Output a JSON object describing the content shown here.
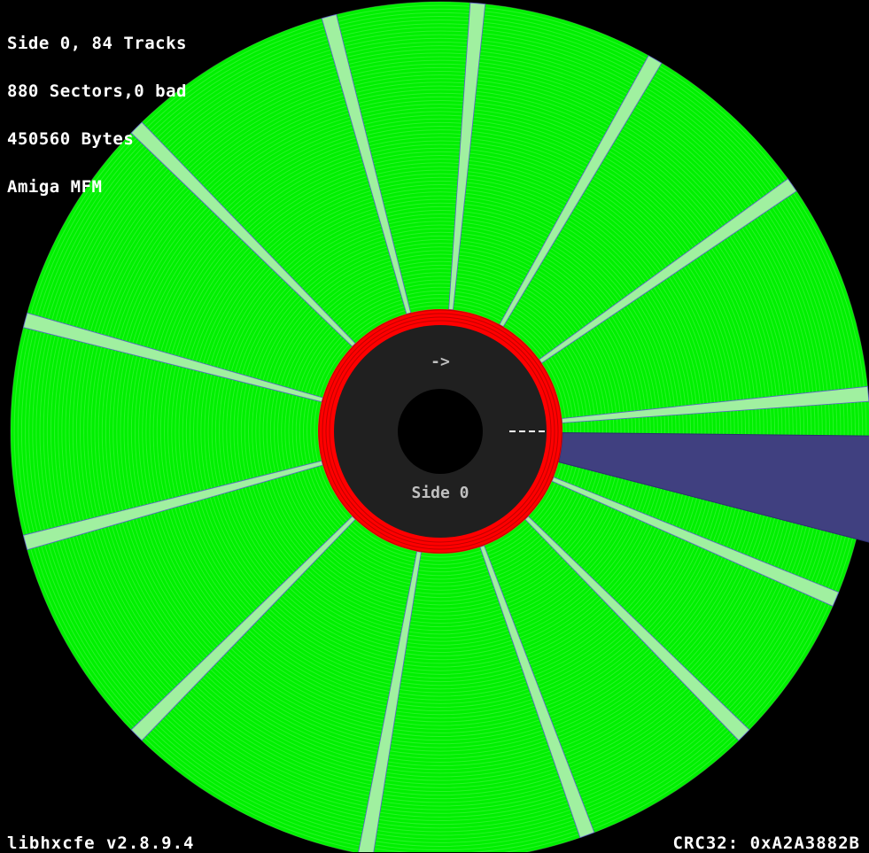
{
  "info": {
    "line1": "Side 0, 84 Tracks",
    "line2": "880 Sectors,0 bad",
    "line3": "450560 Bytes",
    "line4": "Amiga MFM"
  },
  "disk": {
    "side_label": "Side 0",
    "direction_arrow": "->",
    "tracks": 84,
    "sectors_per_track": 11,
    "bad_sectors": 0,
    "colors": {
      "background": "#000000",
      "sector_ok": "#00f000",
      "sector_gap": "#a0f0a0",
      "gap_edge": "#6060d0",
      "selected_sector": "#404080",
      "inner_ring": "#ff0000",
      "hub": "#202020",
      "spindle_hole": "#000000",
      "label": "#c0c0c0"
    }
  },
  "footer": {
    "version": "libhxcfe v2.8.9.4",
    "crc": "CRC32: 0xA2A3882B"
  }
}
